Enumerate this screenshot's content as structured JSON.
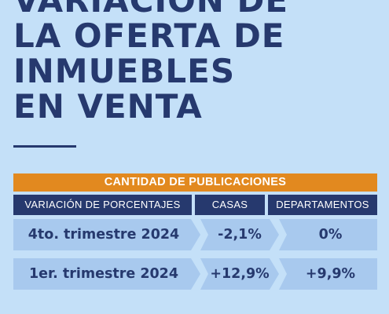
{
  "headline": {
    "lines": [
      "VARIACIÓN DE",
      "LA OFERTA DE",
      "INMUEBLES",
      "EN VENTA"
    ]
  },
  "table": {
    "header": "CANTIDAD DE PUBLICACIONES",
    "columns": [
      "VARIACIÓN DE PORCENTAJES",
      "CASAS",
      "DEPARTAMENTOS"
    ],
    "rows": [
      {
        "period": "4to. trimestre 2024",
        "casas": "-2,1%",
        "departamentos": "0%"
      },
      {
        "period": "1er. trimestre 2024",
        "casas": "+12,9%",
        "departamentos": "+9,9%"
      }
    ]
  },
  "colors": {
    "background": "#c4e0f8",
    "navy": "#26396e",
    "orange": "#e2891f",
    "cell": "#a8c9ee"
  }
}
